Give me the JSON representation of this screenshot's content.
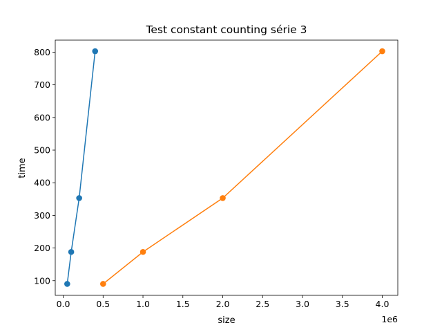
{
  "chart_data": {
    "type": "line",
    "title": "Test constant counting série 3",
    "xlabel": "size",
    "ylabel": "time",
    "x_offset_label": "1e6",
    "xlim": [
      -0.1,
      4.195
    ],
    "ylim": [
      55,
      837
    ],
    "x_ticks": [
      0.0,
      0.5,
      1.0,
      1.5,
      2.0,
      2.5,
      3.0,
      3.5,
      4.0
    ],
    "x_tick_labels": [
      "0.0",
      "0.5",
      "1.0",
      "1.5",
      "2.0",
      "2.5",
      "3.0",
      "3.5",
      "4.0"
    ],
    "y_ticks": [
      100,
      200,
      300,
      400,
      500,
      600,
      700,
      800
    ],
    "y_tick_labels": [
      "100",
      "200",
      "300",
      "400",
      "500",
      "600",
      "700",
      "800"
    ],
    "grid": false,
    "series": [
      {
        "color": "#1f77b4",
        "x": [
          0.05,
          0.1,
          0.2,
          0.4
        ],
        "y": [
          90,
          188,
          353,
          803
        ]
      },
      {
        "color": "#ff7f0e",
        "x": [
          0.5,
          1.0,
          2.0,
          4.0
        ],
        "y": [
          90,
          188,
          353,
          803
        ]
      }
    ]
  }
}
